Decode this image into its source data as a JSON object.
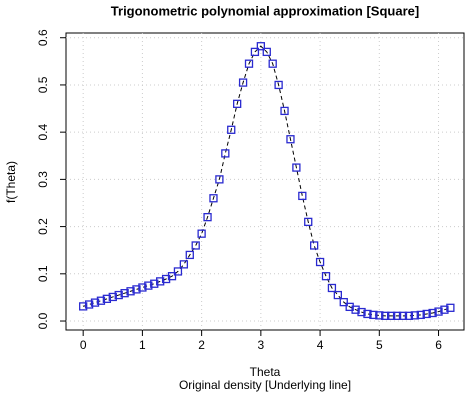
{
  "chart_data": {
    "type": "scatter",
    "title": "Trigonometric polynomial approximation [Square]",
    "x_label": "Theta",
    "caption": "Original density [Underlying line]",
    "y_label": "f(Theta)",
    "x": [
      0,
      0.1,
      0.2,
      0.3,
      0.4,
      0.5,
      0.6,
      0.7,
      0.8,
      0.9,
      1,
      1.1,
      1.2,
      1.3,
      1.4,
      1.5,
      1.6,
      1.7,
      1.8,
      1.9,
      2,
      2.1,
      2.2,
      2.3,
      2.4,
      2.5,
      2.6,
      2.7,
      2.8,
      2.9,
      3,
      3.1,
      3.2,
      3.3,
      3.4,
      3.5,
      3.6,
      3.7,
      3.8,
      3.9,
      4,
      4.1,
      4.2,
      4.3,
      4.4,
      4.5,
      4.6,
      4.7,
      4.8,
      4.9,
      5,
      5.1,
      5.2,
      5.3,
      5.4,
      5.5,
      5.6,
      5.7,
      5.8,
      5.9,
      6,
      6.1,
      6.2
    ],
    "values": [
      0.031,
      0.035,
      0.039,
      0.043,
      0.047,
      0.051,
      0.055,
      0.059,
      0.063,
      0.067,
      0.071,
      0.075,
      0.079,
      0.084,
      0.089,
      0.095,
      0.105,
      0.12,
      0.14,
      0.16,
      0.185,
      0.22,
      0.26,
      0.3,
      0.355,
      0.405,
      0.46,
      0.505,
      0.545,
      0.57,
      0.582,
      0.57,
      0.545,
      0.5,
      0.445,
      0.385,
      0.325,
      0.265,
      0.21,
      0.16,
      0.125,
      0.095,
      0.07,
      0.055,
      0.04,
      0.03,
      0.024,
      0.019,
      0.015,
      0.013,
      0.012,
      0.011,
      0.011,
      0.011,
      0.011,
      0.011,
      0.012,
      0.013,
      0.015,
      0.017,
      0.02,
      0.024,
      0.028
    ],
    "color": "#2a2ad0",
    "line_color": "#000000",
    "xlim": [
      -0.29,
      6.43
    ],
    "ylim": [
      -0.019,
      0.61
    ],
    "xticks": [
      0,
      1,
      2,
      3,
      4,
      5,
      6
    ],
    "yticks": [
      {
        "value": 0,
        "label": "0.0"
      },
      0.1,
      0.2,
      0.3,
      0.4,
      0.5,
      0.6
    ],
    "grid": true
  }
}
